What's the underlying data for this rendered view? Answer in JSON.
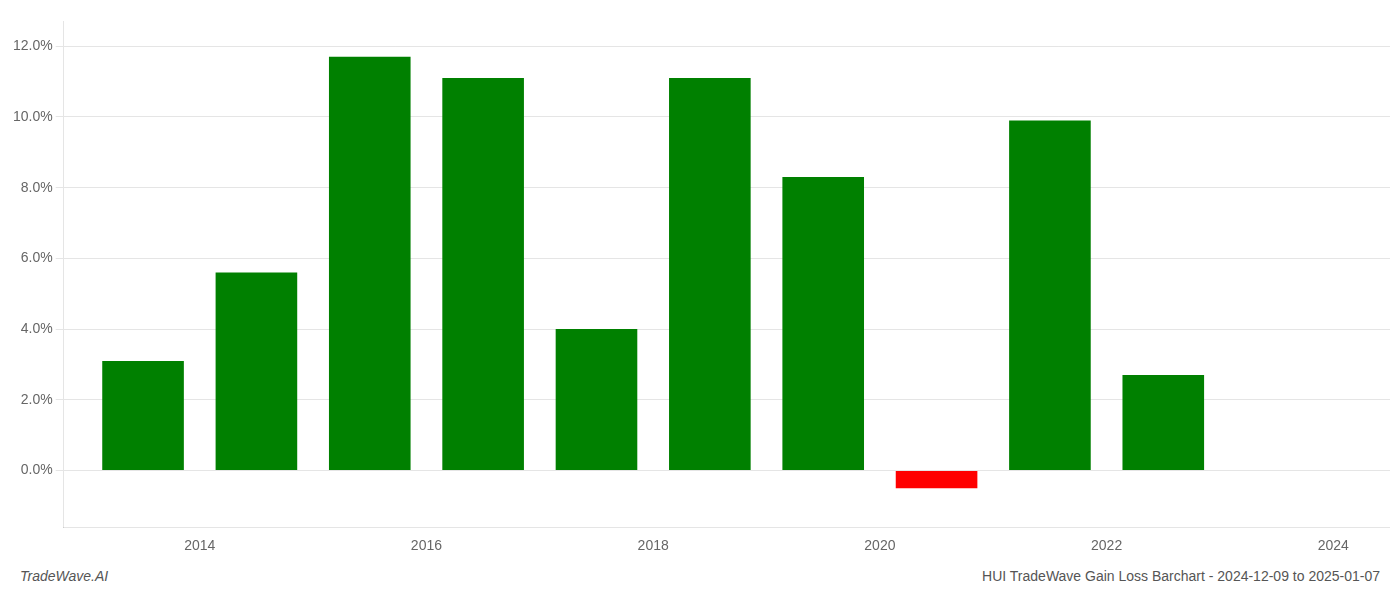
{
  "chart_data": {
    "type": "bar",
    "title": "HUI TradeWave Gain Loss Barchart - 2024-12-09 to 2025-01-07",
    "annotations": [
      "TradeWave.AI"
    ],
    "x": [
      2013.5,
      2014.5,
      2015.5,
      2016.5,
      2017.5,
      2018.5,
      2019.5,
      2020.5,
      2021.5,
      2022.5
    ],
    "values": [
      0.031,
      0.056,
      0.117,
      0.111,
      0.04,
      0.111,
      0.083,
      -0.005,
      0.099,
      0.027
    ],
    "colors": [
      "#008000",
      "#008000",
      "#008000",
      "#008000",
      "#008000",
      "#008000",
      "#008000",
      "#ff0000",
      "#008000",
      "#008000"
    ],
    "xlim": [
      2012.8,
      2024.5
    ],
    "xticks": [
      2014,
      2016,
      2018,
      2020,
      2022,
      2024
    ],
    "ylim": [
      -0.016,
      0.127
    ],
    "yticks": [
      {
        "value": 0.0,
        "label": "0.0%"
      },
      {
        "value": 0.02,
        "label": "2.0%"
      },
      {
        "value": 0.04,
        "label": "4.0%"
      },
      {
        "value": 0.06,
        "label": "6.0%"
      },
      {
        "value": 0.08,
        "label": "8.0%"
      },
      {
        "value": 0.1,
        "label": "10.0%"
      },
      {
        "value": 0.12,
        "label": "12.0%"
      }
    ],
    "grid": "y"
  }
}
